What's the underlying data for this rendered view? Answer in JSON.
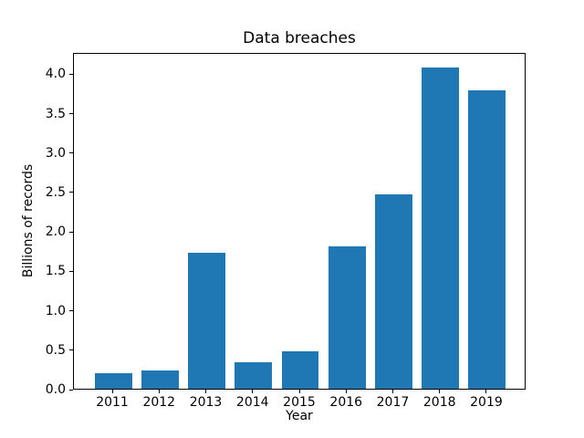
{
  "chart_data": {
    "type": "bar",
    "title": "Data breaches",
    "xlabel": "Year",
    "ylabel": "Billions of records",
    "categories": [
      "2011",
      "2012",
      "2013",
      "2014",
      "2015",
      "2016",
      "2017",
      "2018",
      "2019"
    ],
    "values": [
      0.2,
      0.23,
      1.73,
      0.34,
      0.48,
      1.8,
      2.46,
      4.07,
      3.78
    ],
    "yticks": [
      0.0,
      0.5,
      1.0,
      1.5,
      2.0,
      2.5,
      3.0,
      3.5,
      4.0
    ],
    "ylim": [
      0,
      4.27
    ],
    "bar_color": "#1f77b4",
    "grid": false,
    "legend_position": "none"
  }
}
